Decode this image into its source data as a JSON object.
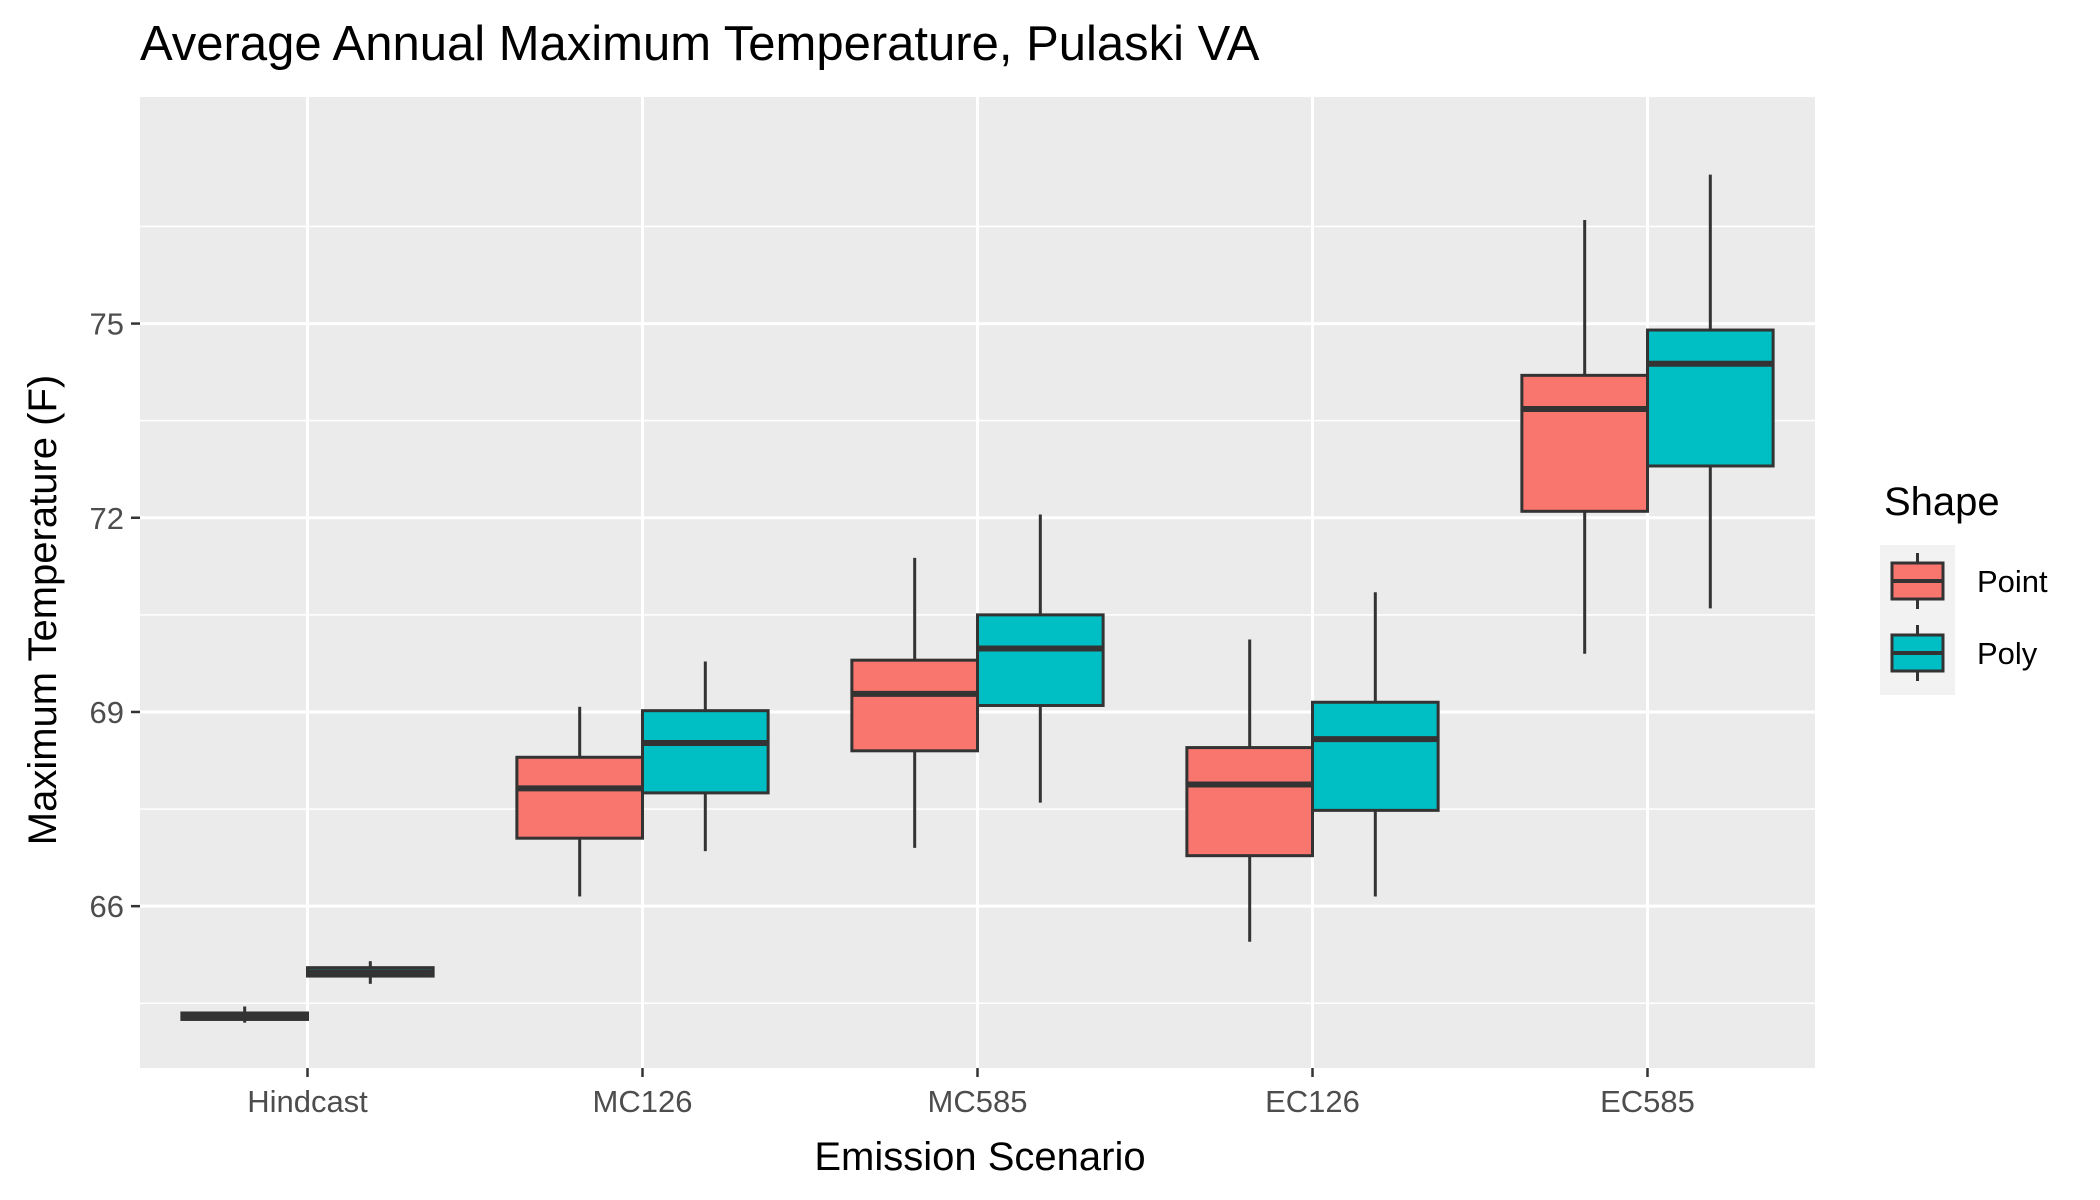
{
  "chart_data": {
    "type": "boxplot",
    "title": "Average Annual Maximum Temperature, Pulaski VA",
    "xlabel": "Emission Scenario",
    "ylabel": "Maximum Temperature (F)",
    "categories": [
      "Hindcast",
      "MC126",
      "MC585",
      "EC126",
      "EC585"
    ],
    "ylim": [
      63.5,
      78.5
    ],
    "yticks": [
      66,
      69,
      72,
      75
    ],
    "grid": true,
    "legend": {
      "title": "Shape",
      "position": "right"
    },
    "series": [
      {
        "name": "Point",
        "color": "#F8766D",
        "boxes": [
          {
            "min": 64.2,
            "q1": 64.25,
            "median": 64.3,
            "q3": 64.35,
            "max": 64.45
          },
          {
            "min": 66.15,
            "q1": 67.05,
            "median": 67.82,
            "q3": 68.3,
            "max": 69.08
          },
          {
            "min": 66.9,
            "q1": 68.4,
            "median": 69.28,
            "q3": 69.8,
            "max": 71.38
          },
          {
            "min": 65.45,
            "q1": 66.78,
            "median": 67.88,
            "q3": 68.45,
            "max": 70.12
          },
          {
            "min": 69.9,
            "q1": 72.1,
            "median": 73.68,
            "q3": 74.2,
            "max": 76.6
          }
        ]
      },
      {
        "name": "Poly",
        "color": "#00BFC4",
        "boxes": [
          {
            "min": 64.8,
            "q1": 64.92,
            "median": 64.98,
            "q3": 65.05,
            "max": 65.15
          },
          {
            "min": 66.85,
            "q1": 67.75,
            "median": 68.52,
            "q3": 69.02,
            "max": 69.78
          },
          {
            "min": 67.6,
            "q1": 69.1,
            "median": 69.98,
            "q3": 70.5,
            "max": 72.05
          },
          {
            "min": 66.15,
            "q1": 67.48,
            "median": 68.58,
            "q3": 69.15,
            "max": 70.85
          },
          {
            "min": 70.6,
            "q1": 72.8,
            "median": 74.38,
            "q3": 74.9,
            "max": 77.3
          }
        ]
      }
    ]
  }
}
